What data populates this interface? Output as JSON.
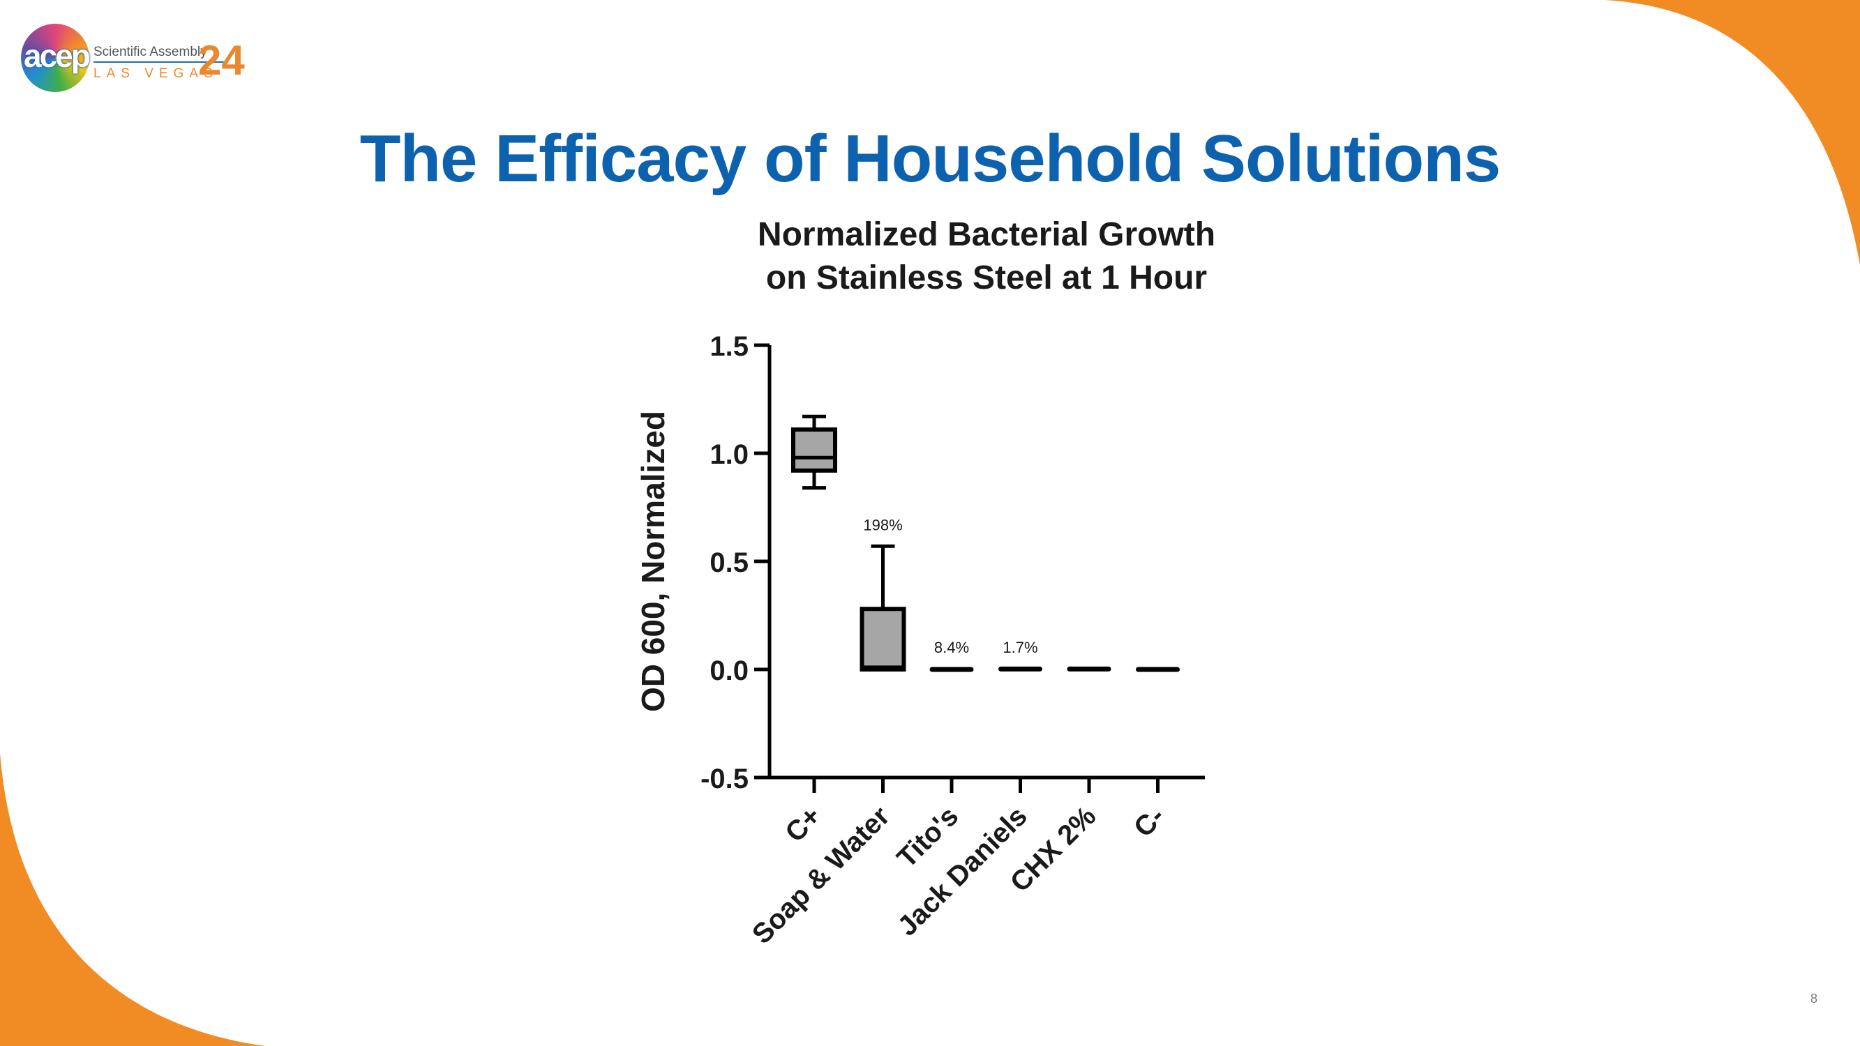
{
  "logo": {
    "wordmark": "acep",
    "line1": "Scientific Assembly",
    "line2": "LAS VEGAS",
    "number": "24"
  },
  "slide": {
    "title": "The Efficacy of Household Solutions",
    "page_number": "8"
  },
  "colors": {
    "title_blue": "#0d62b0",
    "accent_orange": "#f08c23",
    "box_fill": "#a6a6a6",
    "stroke": "#000000"
  },
  "chart_data": {
    "type": "box",
    "title": [
      "Normalized Bacterial Growth",
      "on Stainless Steel at 1 Hour"
    ],
    "ylabel": "OD 600, Normalized",
    "ylim": [
      -0.5,
      1.5
    ],
    "yticks": [
      -0.5,
      0.0,
      0.5,
      1.0,
      1.5
    ],
    "ytick_labels": [
      "-0.5",
      "0.0",
      "0.5",
      "1.0",
      "1.5"
    ],
    "categories": [
      "C+",
      "Soap & Water",
      "Tito's",
      "Jack Daniels",
      "CHX 2%",
      "C-"
    ],
    "boxes": [
      {
        "category": "C+",
        "min": 0.84,
        "q1": 0.92,
        "median": 0.98,
        "q3": 1.11,
        "max": 1.17,
        "annotation": ""
      },
      {
        "category": "Soap & Water",
        "min": 0.0,
        "q1": 0.0,
        "median": 0.01,
        "q3": 0.28,
        "max": 0.57,
        "annotation": "198%"
      },
      {
        "category": "Tito's",
        "min": -0.003,
        "q1": -0.002,
        "median": 0.0,
        "q3": 0.002,
        "max": 0.004,
        "annotation": "8.4%"
      },
      {
        "category": "Jack Daniels",
        "min": 0.0,
        "q1": 0.001,
        "median": 0.002,
        "q3": 0.003,
        "max": 0.004,
        "annotation": "1.7%"
      },
      {
        "category": "CHX 2%",
        "min": 0.0,
        "q1": 0.001,
        "median": 0.002,
        "q3": 0.003,
        "max": 0.004,
        "annotation": ""
      },
      {
        "category": "C-",
        "min": -0.003,
        "q1": -0.002,
        "median": 0.0,
        "q3": 0.002,
        "max": 0.003,
        "annotation": ""
      }
    ],
    "grid": false,
    "legend": "none"
  }
}
